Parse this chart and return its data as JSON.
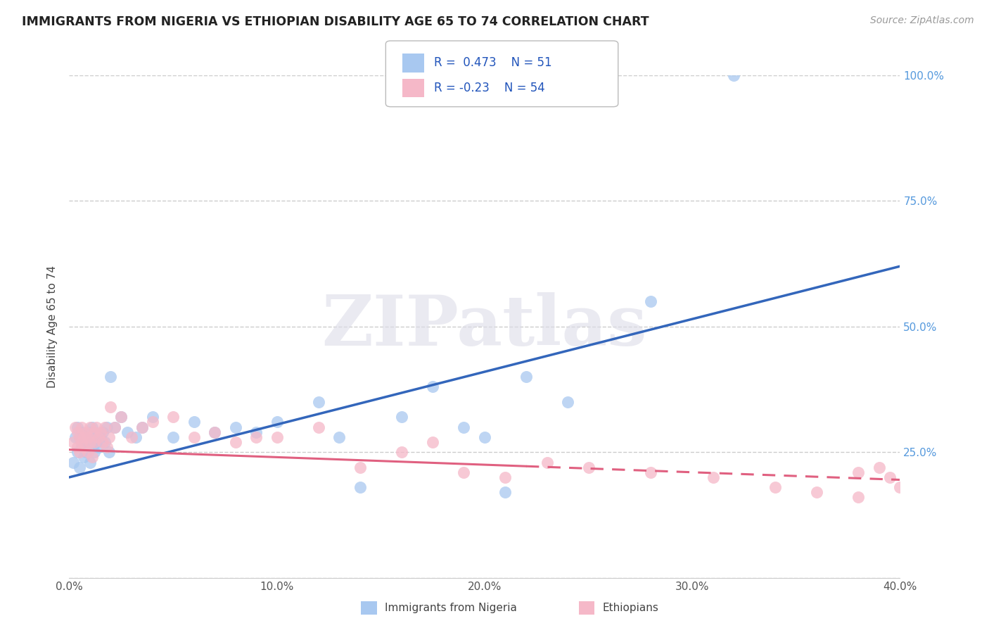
{
  "title": "IMMIGRANTS FROM NIGERIA VS ETHIOPIAN DISABILITY AGE 65 TO 74 CORRELATION CHART",
  "source": "Source: ZipAtlas.com",
  "ylabel": "Disability Age 65 to 74",
  "xlim": [
    0.0,
    0.4
  ],
  "ylim": [
    0.0,
    1.0
  ],
  "xticks": [
    0.0,
    0.1,
    0.2,
    0.3,
    0.4
  ],
  "xtick_labels": [
    "0.0%",
    "10.0%",
    "20.0%",
    "30.0%",
    "40.0%"
  ],
  "yticks": [
    0.25,
    0.5,
    0.75,
    1.0
  ],
  "ytick_labels": [
    "25.0%",
    "50.0%",
    "75.0%",
    "100.0%"
  ],
  "nigeria_R": 0.473,
  "nigeria_N": 51,
  "ethiopia_R": -0.23,
  "ethiopia_N": 54,
  "nigeria_color": "#A8C8F0",
  "ethiopia_color": "#F5B8C8",
  "nigeria_line_color": "#3366BB",
  "ethiopia_line_color": "#E06080",
  "watermark": "ZIPatlas",
  "nigeria_line_x0": 0.0,
  "nigeria_line_y0": 0.2,
  "nigeria_line_x1": 0.4,
  "nigeria_line_y1": 0.62,
  "ethiopia_line_x0": 0.0,
  "ethiopia_line_y0": 0.255,
  "ethiopia_line_x1": 0.4,
  "ethiopia_line_y1": 0.195,
  "nigeria_x": [
    0.002,
    0.003,
    0.004,
    0.004,
    0.005,
    0.005,
    0.006,
    0.006,
    0.007,
    0.007,
    0.008,
    0.008,
    0.009,
    0.01,
    0.01,
    0.011,
    0.011,
    0.012,
    0.012,
    0.013,
    0.014,
    0.015,
    0.016,
    0.017,
    0.018,
    0.019,
    0.02,
    0.022,
    0.025,
    0.028,
    0.032,
    0.035,
    0.04,
    0.05,
    0.06,
    0.07,
    0.08,
    0.09,
    0.1,
    0.12,
    0.13,
    0.14,
    0.16,
    0.175,
    0.19,
    0.2,
    0.21,
    0.22,
    0.24,
    0.28,
    0.32
  ],
  "nigeria_y": [
    0.23,
    0.28,
    0.25,
    0.3,
    0.22,
    0.28,
    0.26,
    0.29,
    0.24,
    0.27,
    0.28,
    0.25,
    0.27,
    0.29,
    0.23,
    0.26,
    0.3,
    0.25,
    0.29,
    0.27,
    0.26,
    0.28,
    0.29,
    0.27,
    0.3,
    0.25,
    0.4,
    0.3,
    0.32,
    0.29,
    0.28,
    0.3,
    0.32,
    0.28,
    0.31,
    0.29,
    0.3,
    0.29,
    0.31,
    0.35,
    0.28,
    0.18,
    0.32,
    0.38,
    0.3,
    0.28,
    0.17,
    0.4,
    0.35,
    0.55,
    1.0
  ],
  "ethiopia_x": [
    0.002,
    0.003,
    0.004,
    0.004,
    0.005,
    0.005,
    0.006,
    0.006,
    0.007,
    0.007,
    0.008,
    0.009,
    0.009,
    0.01,
    0.01,
    0.011,
    0.012,
    0.012,
    0.013,
    0.014,
    0.015,
    0.016,
    0.017,
    0.018,
    0.019,
    0.02,
    0.022,
    0.025,
    0.03,
    0.035,
    0.04,
    0.05,
    0.06,
    0.07,
    0.08,
    0.09,
    0.1,
    0.12,
    0.14,
    0.16,
    0.175,
    0.19,
    0.21,
    0.23,
    0.25,
    0.28,
    0.31,
    0.34,
    0.36,
    0.38,
    0.38,
    0.39,
    0.395,
    0.4
  ],
  "ethiopia_y": [
    0.27,
    0.3,
    0.26,
    0.29,
    0.25,
    0.28,
    0.27,
    0.3,
    0.26,
    0.28,
    0.29,
    0.25,
    0.28,
    0.27,
    0.3,
    0.24,
    0.29,
    0.27,
    0.3,
    0.28,
    0.29,
    0.27,
    0.3,
    0.26,
    0.28,
    0.34,
    0.3,
    0.32,
    0.28,
    0.3,
    0.31,
    0.32,
    0.28,
    0.29,
    0.27,
    0.28,
    0.28,
    0.3,
    0.22,
    0.25,
    0.27,
    0.21,
    0.2,
    0.23,
    0.22,
    0.21,
    0.2,
    0.18,
    0.17,
    0.16,
    0.21,
    0.22,
    0.2,
    0.18
  ]
}
